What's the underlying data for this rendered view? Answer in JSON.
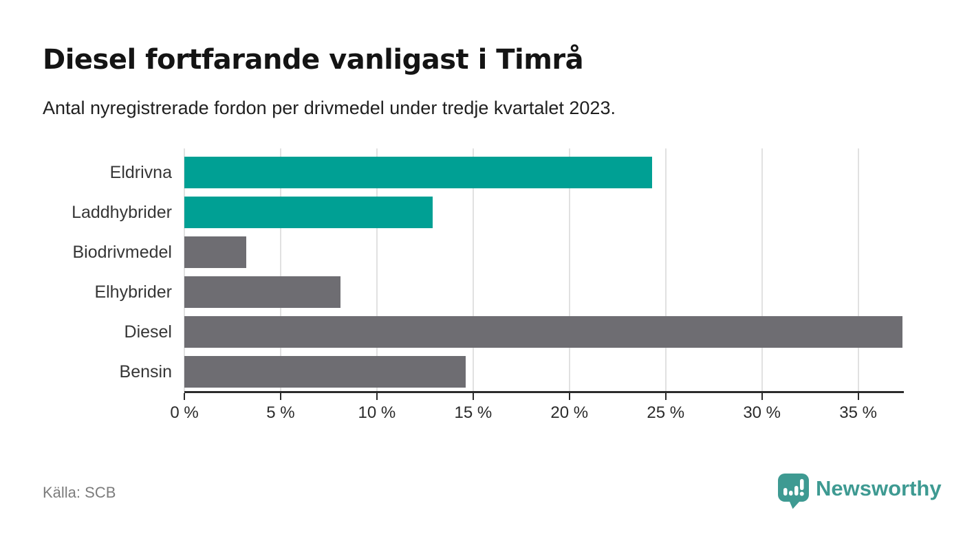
{
  "header": {
    "title": "Diesel fortfarande vanligast i Timrå",
    "subtitle": "Antal nyregistrerade fordon per drivmedel under tredje kvartalet 2023."
  },
  "chart_data": {
    "type": "bar",
    "orientation": "horizontal",
    "title": "Diesel fortfarande vanligast i Timrå",
    "subtitle": "Antal nyregistrerade fordon per drivmedel under tredje kvartalet 2023.",
    "categories": [
      "Eldrivna",
      "Laddhybrider",
      "Biodrivmedel",
      "Elhybrider",
      "Diesel",
      "Bensin"
    ],
    "values": [
      24.3,
      12.9,
      3.2,
      8.1,
      37.3,
      14.6
    ],
    "unit": "%",
    "bar_colors": [
      "#00A094",
      "#00A094",
      "#6E6D72",
      "#6E6D72",
      "#6E6D72",
      "#6E6D72"
    ],
    "xticks": [
      0,
      5,
      10,
      15,
      20,
      25,
      30,
      35
    ],
    "xtick_labels": [
      "0 %",
      "5 %",
      "10 %",
      "15 %",
      "20 %",
      "25 %",
      "30 %",
      "35 %"
    ],
    "xlim": [
      0,
      37.3
    ],
    "xlabel": "",
    "ylabel": "",
    "grid": true,
    "legend": "none"
  },
  "footer": {
    "source": "Källa: SCB",
    "brand": "Newsworthy",
    "brand_icon": "speech-bubble-bar-chart-icon"
  },
  "colors": {
    "accent_teal": "#00A094",
    "bar_gray": "#6E6D72",
    "brand_teal": "#3E9A92",
    "grid": "#E1E1E1",
    "axis": "#2B2B2B",
    "background": "#FFFFFF"
  }
}
